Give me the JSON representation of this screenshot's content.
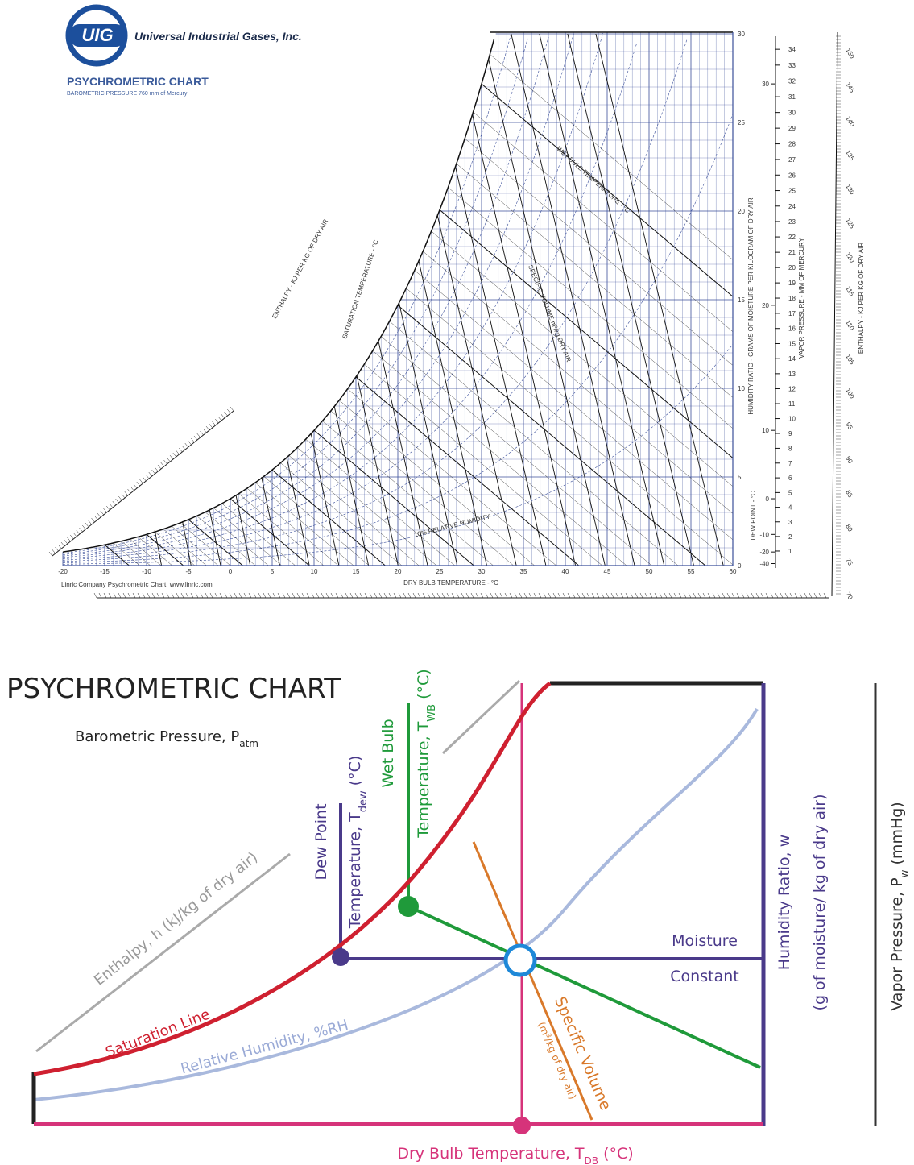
{
  "logo": {
    "mark": "UIG",
    "company": "Universal Industrial Gases, Inc."
  },
  "top_chart": {
    "title": "PSYCHROMETRIC CHART",
    "subtitle": "BAROMETRIC PRESSURE 760 mm of Mercury",
    "credit": "Linric Company Psychrometric Chart, www.linric.com",
    "dry_bulb_label": "DRY BULB TEMPERATURE - °C",
    "dry_bulb_ticks": [
      "-20",
      "-15",
      "-10",
      "-5",
      "0",
      "5",
      "10",
      "15",
      "20",
      "25",
      "30",
      "35",
      "40",
      "45",
      "50",
      "55",
      "60"
    ],
    "humidity_ratio_label": "HUMIDITY RATIO - GRAMS OF MOISTURE PER KILOGRAM OF DRY AIR",
    "humidity_ratio_ticks": [
      "0",
      "5",
      "10",
      "15",
      "20",
      "25",
      "30"
    ],
    "dew_point_label": "DEW POINT - °C",
    "dew_point_ticks": [
      "-40",
      "-20",
      "-10",
      "0",
      "10",
      "20",
      "30"
    ],
    "vapor_pressure_label": "VAPOR PRESSURE - MM OF MERCURY",
    "vapor_pressure_ticks": [
      "1",
      "2",
      "3",
      "4",
      "5",
      "6",
      "7",
      "8",
      "9",
      "10",
      "11",
      "12",
      "13",
      "14",
      "15",
      "16",
      "17",
      "18",
      "19",
      "20",
      "21",
      "22",
      "23",
      "24",
      "25",
      "26",
      "27",
      "28",
      "29",
      "30",
      "31",
      "32",
      "33",
      "34"
    ],
    "enthalpy_label": "ENTHALPY - KJ PER KG OF DRY AIR",
    "enthalpy_ticks": [
      "70",
      "75",
      "80",
      "85",
      "90",
      "95",
      "100",
      "105",
      "110",
      "115",
      "120",
      "125",
      "130",
      "135",
      "140",
      "145",
      "150"
    ],
    "saturation_label": "SATURATION TEMPERATURE - °C",
    "wet_bulb_label": "WET BULB TEMPERATURE - °C",
    "specific_volume_label": "SPECIFIC VOLUME m³/kg DRY AIR",
    "rh_label": "10% RELATIVE HUMIDITY",
    "enthalpy_left_label": "ENTHALPY - KJ PER KG OF DRY AIR"
  },
  "diagram": {
    "title": "PSYCHROMETRIC CHART",
    "barometric": {
      "text": "Barometric Pressure, P",
      "sub": "atm"
    },
    "dew_point": {
      "line1": "Dew Point",
      "line2": "Temperature, T",
      "sub": "dew",
      "unit": " (°C)"
    },
    "wet_bulb": {
      "line1": "Wet Bulb",
      "line2": "Temperature, T",
      "sub": "WB",
      "unit": " (°C)"
    },
    "enthalpy": "Enthalpy, h (kJ/kg of dry air)",
    "saturation": "Saturation Line",
    "relative_humidity": "Relative Humidity, %RH",
    "moisture": "Moisture",
    "constant": "Constant",
    "humidity_ratio": {
      "line1": "Humidity Ratio, w",
      "line2": "(g of moisture/ kg of dry air)"
    },
    "specific_volume": {
      "text": "Specific Volume",
      "unit_a": "(m",
      "sup": "3",
      "unit_b": "/kg of dry air)"
    },
    "dry_bulb": {
      "text": "Dry Bulb Temperature, T",
      "sub": "DB",
      "unit": " (°C)"
    },
    "vapor_pressure": {
      "text": "Vapor Pressure, P",
      "sub": "w",
      "unit": " (mmHg)"
    }
  }
}
